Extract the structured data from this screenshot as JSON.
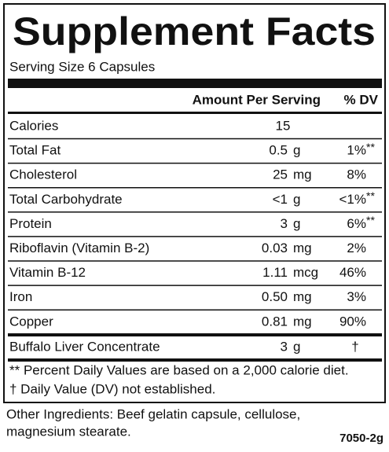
{
  "header": {
    "title": "Supplement Facts",
    "serving": "Serving Size 6 Capsules"
  },
  "table": {
    "columns": [
      "Amount Per Serving",
      "% DV"
    ],
    "rows": [
      {
        "name": "Calories",
        "amount": "15"
      },
      {
        "name": "Total Fat",
        "amount": "0.5",
        "unit": "g",
        "dv": "1%",
        "mark": "**"
      },
      {
        "name": "Cholesterol",
        "amount": "25",
        "unit": "mg",
        "dv": "8%"
      },
      {
        "name": "Total Carbohydrate",
        "amount": "<1",
        "unit": "g",
        "dv": "<1%",
        "mark": "**"
      },
      {
        "name": "Protein",
        "amount": "3",
        "unit": "g",
        "dv": "6%",
        "mark": "**"
      },
      {
        "name": "Riboflavin (Vitamin B-2)",
        "amount": "0.03",
        "unit": "mg",
        "dv": "2%"
      },
      {
        "name": "Vitamin B-12",
        "amount": "1.11",
        "unit": "mcg",
        "dv": "46%"
      },
      {
        "name": "Iron",
        "amount": "0.50",
        "unit": "mg",
        "dv": "3%"
      },
      {
        "name": "Copper",
        "amount": "0.81",
        "unit": "mg",
        "dv": "90%"
      }
    ],
    "other_rows": [
      {
        "name": "Buffalo Liver Concentrate",
        "amount": "3",
        "unit": "g",
        "mark": "†"
      }
    ]
  },
  "footnotes": [
    "** Percent Daily Values are based on a 2,000 calorie diet.",
    "† Daily Value (DV) not established."
  ],
  "ingredients": [
    "Other Ingredients:  Beef gelatin capsule, cellulose,",
    "magnesium stearate."
  ],
  "code": "7050-2g"
}
